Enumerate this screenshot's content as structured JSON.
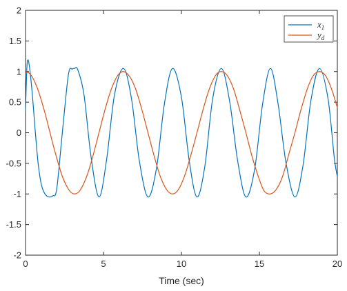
{
  "chart_data": {
    "type": "line",
    "title": "",
    "xlabel": "Time (sec)",
    "ylabel": "",
    "xlim": [
      0,
      20
    ],
    "ylim": [
      -2,
      2
    ],
    "xticks": [
      0,
      5,
      10,
      15,
      20
    ],
    "xtick_labels": [
      "0",
      "5",
      "10",
      "15",
      "20"
    ],
    "yticks": [
      -2,
      -1.5,
      -1,
      -0.5,
      0,
      0.5,
      1,
      1.5,
      2
    ],
    "ytick_labels": [
      "-2",
      "-1.5",
      "-1",
      "-0.5",
      "0",
      "0.5",
      "1",
      "1.5",
      "2"
    ],
    "grid": false,
    "legend_position": "top-right",
    "series": [
      {
        "name": "x",
        "name_subscript": "1",
        "color": "#0072BD",
        "x": [
          0,
          0.05,
          0.1,
          0.15,
          0.2,
          0.25,
          0.3,
          0.4,
          0.5,
          0.6,
          0.8,
          1.0,
          1.2,
          1.4,
          1.571,
          1.75,
          2.0,
          2.356,
          2.75,
          3.0,
          3.142,
          3.35,
          3.75,
          4.2,
          4.712,
          5.2,
          5.7,
          6.283,
          6.8,
          7.3,
          7.854,
          8.4,
          8.9,
          9.425,
          10.0,
          10.5,
          10.996,
          11.5,
          12.0,
          12.566,
          13.1,
          13.6,
          14.137,
          14.7,
          15.2,
          15.708,
          16.2,
          16.7,
          17.279,
          17.8,
          18.3,
          18.85,
          19.4,
          19.8,
          20.0
        ],
        "y": [
          0.35,
          0.8,
          1.12,
          1.19,
          1.16,
          1.08,
          0.98,
          0.73,
          0.43,
          0.1,
          -0.48,
          -0.83,
          -0.98,
          -1.04,
          -1.05,
          -1.03,
          -0.92,
          -0.01,
          0.95,
          1.04,
          1.05,
          1.03,
          0.62,
          -0.39,
          -1.05,
          -0.44,
          0.61,
          1.05,
          0.55,
          -0.46,
          -1.05,
          -0.58,
          0.46,
          1.05,
          0.58,
          -0.46,
          -1.05,
          -0.55,
          0.55,
          1.05,
          0.5,
          -0.45,
          -1.05,
          -0.59,
          0.46,
          1.05,
          0.47,
          -0.48,
          -1.05,
          -0.53,
          0.52,
          1.05,
          0.56,
          -0.4,
          -0.72
        ]
      },
      {
        "name": "y",
        "name_subscript": "d",
        "color": "#D95319",
        "x": [
          0,
          0.25,
          0.5,
          0.785,
          1.0,
          1.25,
          1.571,
          1.9,
          2.356,
          2.8,
          3.142,
          3.5,
          3.927,
          4.3,
          4.712,
          5.1,
          5.498,
          5.9,
          6.283,
          6.7,
          7.069,
          7.45,
          7.854,
          8.25,
          8.639,
          9.05,
          9.425,
          9.8,
          10.21,
          10.6,
          10.996,
          11.4,
          11.781,
          12.2,
          12.566,
          12.95,
          13.352,
          13.75,
          14.137,
          14.5,
          14.923,
          15.3,
          15.708,
          16.1,
          16.493,
          16.9,
          17.279,
          17.65,
          18.064,
          18.45,
          18.85,
          19.25,
          19.635,
          20.0
        ],
        "y": [
          1.0,
          0.97,
          0.88,
          0.71,
          0.54,
          0.32,
          0.0,
          -0.32,
          -0.71,
          -0.94,
          -1.0,
          -0.94,
          -0.71,
          -0.4,
          0.0,
          0.38,
          0.71,
          0.93,
          1.0,
          0.91,
          0.71,
          0.39,
          0.0,
          -0.38,
          -0.71,
          -0.93,
          -1.0,
          -0.93,
          -0.7,
          -0.37,
          0.0,
          0.39,
          0.71,
          0.94,
          1.0,
          0.93,
          0.71,
          0.36,
          0.0,
          -0.36,
          -0.71,
          -0.95,
          -1.0,
          -0.92,
          -0.71,
          -0.34,
          0.0,
          0.36,
          0.71,
          0.93,
          1.0,
          0.93,
          0.71,
          0.41
        ]
      }
    ]
  }
}
